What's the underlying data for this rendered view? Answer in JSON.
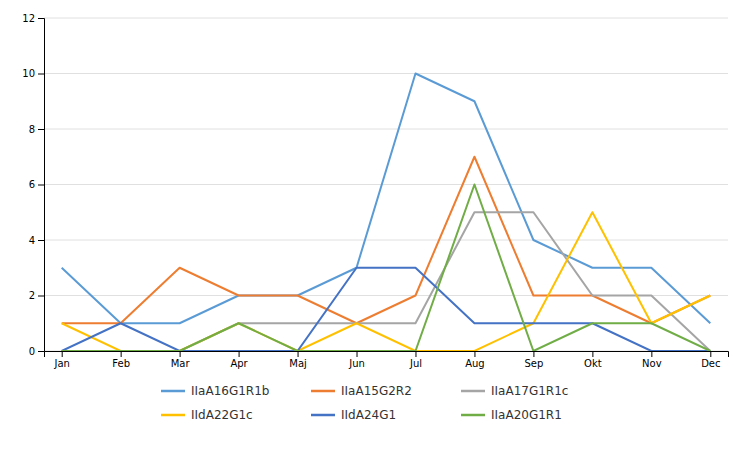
{
  "chart_data": {
    "type": "line",
    "categories": [
      "Jan",
      "Feb",
      "Mar",
      "Apr",
      "Maj",
      "Jun",
      "Jul",
      "Aug",
      "Sep",
      "Okt",
      "Nov",
      "Dec"
    ],
    "series": [
      {
        "name": "IIaA16G1R1b",
        "color": "#5B9BD5",
        "values": [
          3,
          1,
          1,
          2,
          2,
          3,
          10,
          9,
          4,
          3,
          3,
          1
        ]
      },
      {
        "name": "IIaA15G2R2",
        "color": "#ED7D31",
        "values": [
          1,
          1,
          3,
          2,
          2,
          1,
          2,
          7,
          2,
          2,
          1,
          2
        ]
      },
      {
        "name": "IIaA17G1R1c",
        "color": "#A5A5A5",
        "values": [
          0,
          0,
          0,
          1,
          1,
          1,
          1,
          5,
          5,
          2,
          2,
          0
        ]
      },
      {
        "name": "IIdA22G1c",
        "color": "#FFC000",
        "values": [
          1,
          0,
          0,
          1,
          0,
          1,
          0,
          0,
          1,
          5,
          1,
          2
        ]
      },
      {
        "name": "IIdA24G1",
        "color": "#4472C4",
        "values": [
          0,
          1,
          0,
          0,
          0,
          3,
          3,
          1,
          1,
          1,
          0,
          0
        ]
      },
      {
        "name": "IIaA20G1R1",
        "color": "#70AD47",
        "values": [
          0,
          0,
          0,
          1,
          0,
          0,
          0,
          6,
          0,
          1,
          1,
          0
        ]
      }
    ],
    "ylim": [
      0,
      12
    ],
    "yticks": [
      0,
      2,
      4,
      6,
      8,
      10,
      12
    ],
    "grid": true,
    "legend": "bottom"
  }
}
